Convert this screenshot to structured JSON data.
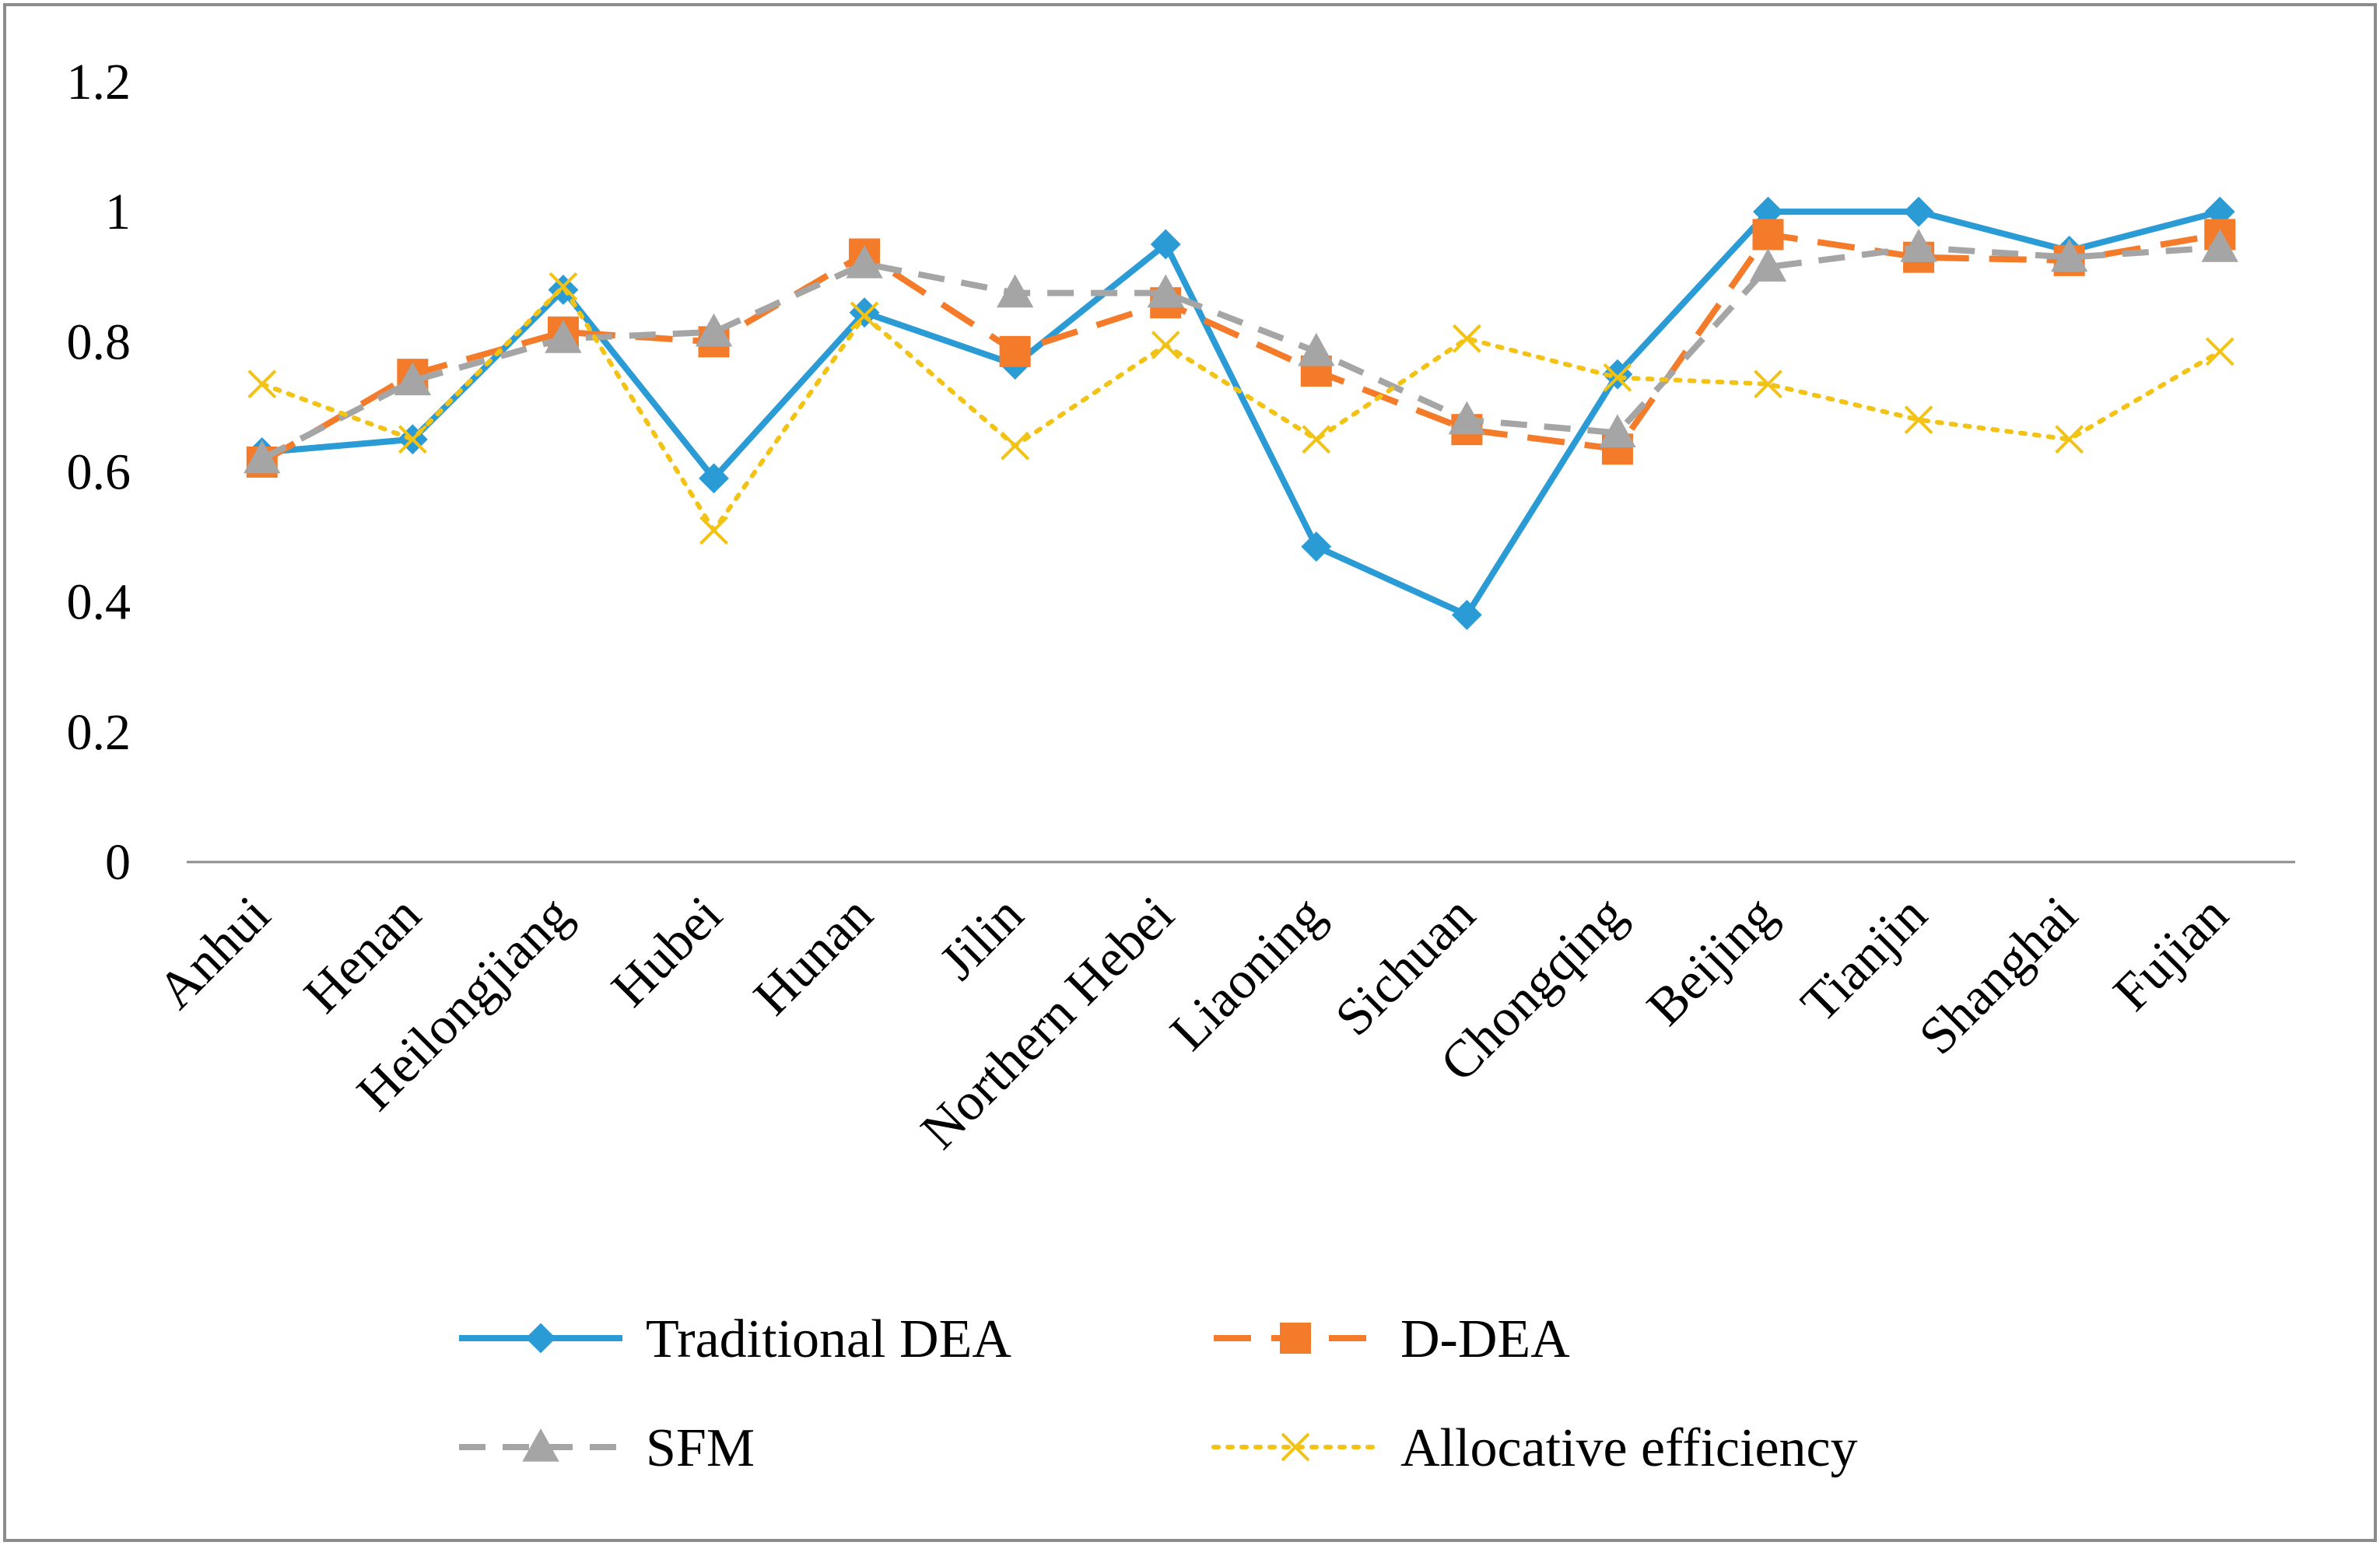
{
  "chart_data": {
    "type": "line",
    "title": "",
    "xlabel": "",
    "ylabel": "",
    "ylim": [
      0,
      1.2
    ],
    "yticks": [
      "0",
      "0.2",
      "0.4",
      "0.6",
      "0.8",
      "1",
      "1.2"
    ],
    "categories": [
      "Anhui",
      "Henan",
      "Heilongjiang",
      "Hubei",
      "Hunan",
      "Jilin",
      "Northern Hebei",
      "Liaoning",
      "Sichuan",
      "Chongqing",
      "Beijing",
      "Tianjin",
      "Shanghai",
      "Fujian"
    ],
    "grid": false,
    "legend_position": "bottom",
    "series": [
      {
        "name": "Traditional DEA",
        "color": "#2b9bd6",
        "marker": "diamond",
        "dash": "solid",
        "values": [
          0.63,
          0.65,
          0.88,
          0.59,
          0.845,
          0.765,
          0.95,
          0.485,
          0.38,
          0.75,
          1.0,
          1.0,
          0.94,
          1.0
        ]
      },
      {
        "name": "D-DEA",
        "color": "#f47b2a",
        "marker": "square",
        "dash": "long-dash",
        "values": [
          0.615,
          0.75,
          0.815,
          0.8,
          0.935,
          0.785,
          0.86,
          0.755,
          0.665,
          0.635,
          0.965,
          0.93,
          0.925,
          0.965
        ]
      },
      {
        "name": "SFM",
        "color": "#a5a5a5",
        "marker": "triangle",
        "dash": "dash",
        "values": [
          0.62,
          0.74,
          0.805,
          0.815,
          0.92,
          0.875,
          0.875,
          0.785,
          0.68,
          0.66,
          0.915,
          0.945,
          0.93,
          0.945
        ]
      },
      {
        "name": "Allocative efficiency",
        "color": "#f2c314",
        "marker": "x",
        "dash": "dot",
        "values": [
          0.735,
          0.65,
          0.885,
          0.51,
          0.84,
          0.64,
          0.795,
          0.65,
          0.805,
          0.745,
          0.735,
          0.68,
          0.65,
          0.785
        ]
      }
    ]
  }
}
